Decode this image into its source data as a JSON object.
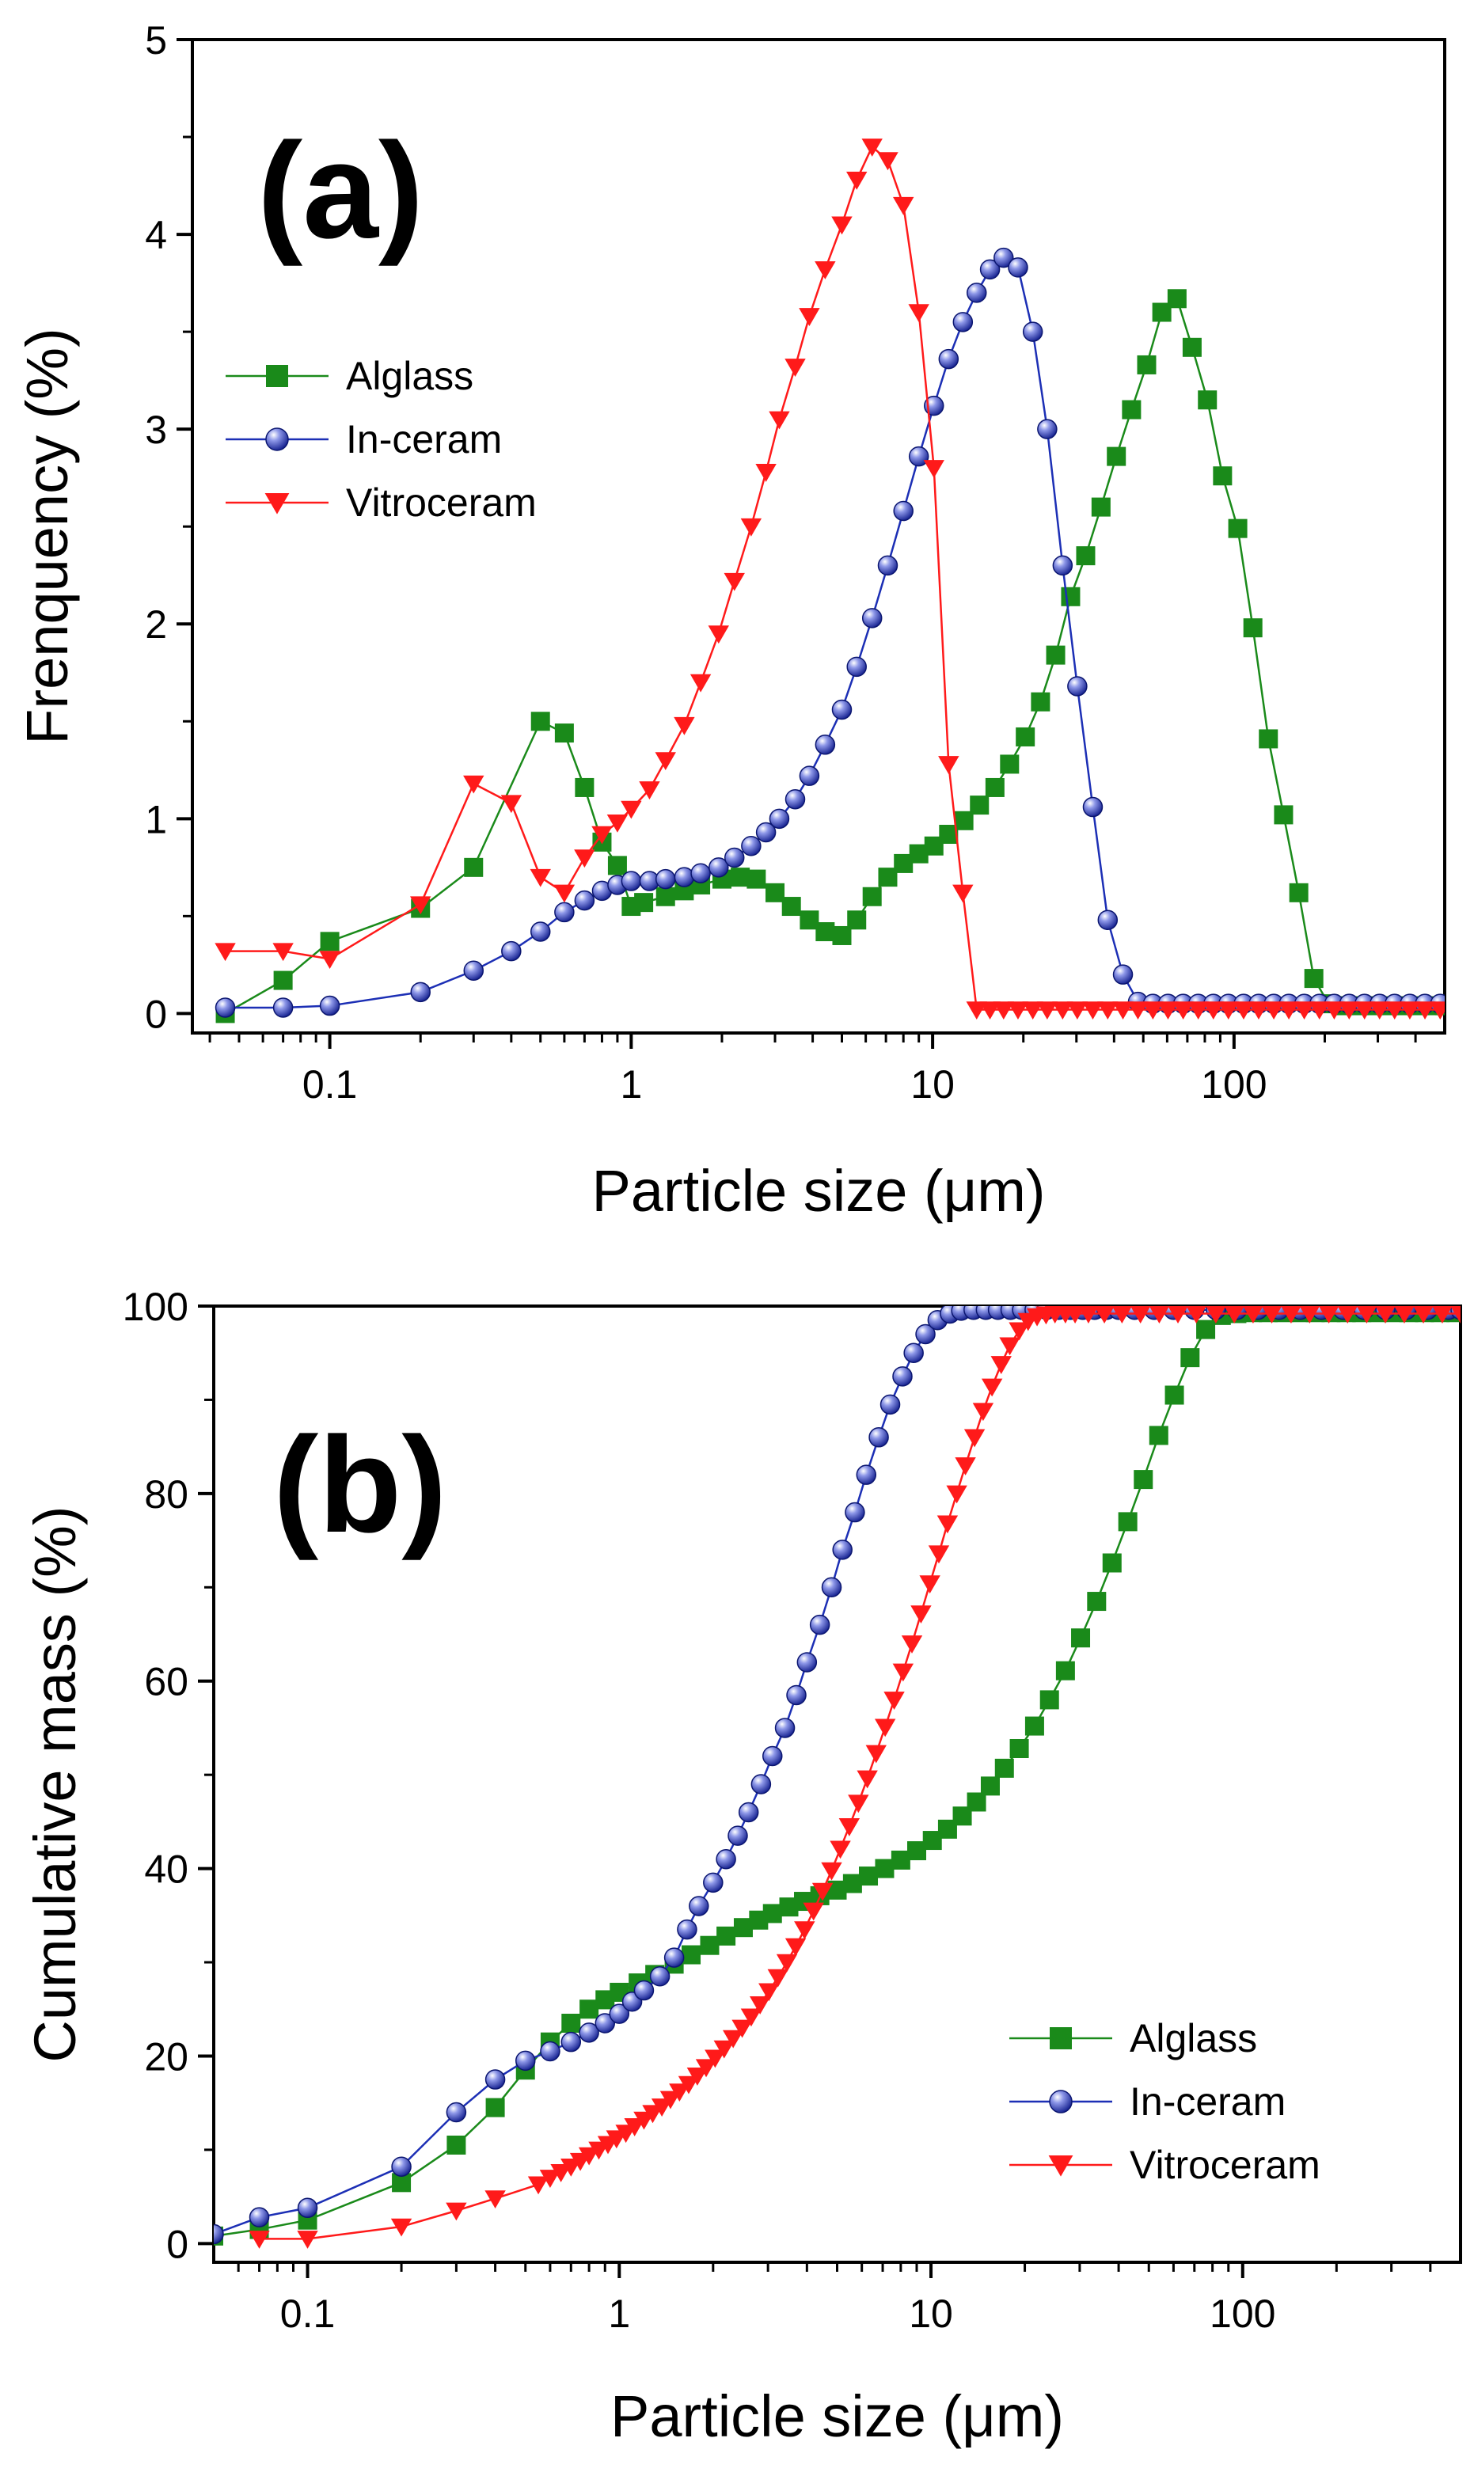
{
  "figure": {
    "panels": [
      "(a)",
      "(b)"
    ]
  },
  "colors": {
    "Alglass": "#1a8a1a",
    "In-ceram": "#1c2fb5",
    "Vitroceram": "#ff1a1a"
  },
  "chart_data": [
    {
      "type": "scatter",
      "panel_label": "(a)",
      "xlabel": "Particle size (μm)",
      "ylabel": "Frenquency (%)",
      "xscale": "log",
      "xlim": [
        0.035,
        500
      ],
      "ylim": [
        -0.1,
        5
      ],
      "xticks": [
        0.1,
        1,
        10,
        100
      ],
      "xtick_labels": [
        "0.1",
        "1",
        "10",
        "100"
      ],
      "yticks": [
        0,
        1,
        2,
        3,
        4,
        5
      ],
      "ytick_labels": [
        "0",
        "1",
        "2",
        "3",
        "4",
        "5"
      ],
      "legend_position": "middle-left",
      "series": [
        {
          "name": "Alglass",
          "marker": "square",
          "x": [
            0.045,
            0.07,
            0.1,
            0.2,
            0.3,
            0.5,
            0.6,
            0.7,
            0.8,
            0.9,
            1.0,
            1.1,
            1.3,
            1.5,
            1.7,
            2.0,
            2.3,
            2.6,
            3.0,
            3.4,
            3.9,
            4.4,
            5.0,
            5.6,
            6.3,
            7.1,
            8.0,
            9.0,
            10.1,
            11.3,
            12.7,
            14.3,
            16.1,
            18.0,
            20.3,
            22.8,
            25.6,
            28.7,
            32.2,
            36.2,
            40.7,
            45.7,
            51.3,
            57.6,
            64.7,
            72.6,
            81.6,
            91.6,
            102.9,
            115.5,
            130,
            146,
            164,
            184,
            206,
            232,
            260,
            292,
            328,
            368,
            414,
            465,
            500
          ],
          "y": [
            0.0,
            0.17,
            0.37,
            0.54,
            0.75,
            1.5,
            1.44,
            1.16,
            0.88,
            0.76,
            0.55,
            0.57,
            0.6,
            0.63,
            0.66,
            0.69,
            0.7,
            0.69,
            0.62,
            0.55,
            0.48,
            0.42,
            0.4,
            0.48,
            0.6,
            0.7,
            0.77,
            0.82,
            0.86,
            0.92,
            0.99,
            1.07,
            1.16,
            1.28,
            1.42,
            1.6,
            1.84,
            2.14,
            2.35,
            2.6,
            2.86,
            3.1,
            3.33,
            3.6,
            3.67,
            3.42,
            3.15,
            2.76,
            2.49,
            1.98,
            1.41,
            1.02,
            0.62,
            0.18,
            0.05,
            0.04,
            0.04,
            0.04,
            0.04,
            0.04,
            0.04,
            0.04,
            0.04
          ]
        },
        {
          "name": "In-ceram",
          "marker": "sphere",
          "x": [
            0.045,
            0.07,
            0.1,
            0.2,
            0.3,
            0.4,
            0.5,
            0.6,
            0.7,
            0.8,
            0.9,
            1.0,
            1.15,
            1.3,
            1.5,
            1.7,
            1.95,
            2.2,
            2.5,
            2.8,
            3.1,
            3.5,
            3.9,
            4.4,
            5.0,
            5.6,
            6.3,
            7.1,
            8.0,
            9.0,
            10.1,
            11.3,
            12.6,
            14.0,
            15.5,
            17.2,
            19.2,
            21.5,
            24.0,
            27.0,
            30.2,
            34.0,
            38.1,
            42.8,
            48.0,
            53.8,
            60.4,
            67.8,
            76.1,
            85.4,
            95.8,
            107.6,
            120.7,
            135.5,
            152,
            171,
            192,
            215,
            241,
            271,
            304,
            341,
            383,
            430,
            483
          ],
          "y": [
            0.03,
            0.03,
            0.04,
            0.11,
            0.22,
            0.32,
            0.42,
            0.52,
            0.58,
            0.63,
            0.66,
            0.68,
            0.68,
            0.69,
            0.7,
            0.72,
            0.75,
            0.8,
            0.86,
            0.93,
            1.0,
            1.1,
            1.22,
            1.38,
            1.56,
            1.78,
            2.03,
            2.3,
            2.58,
            2.86,
            3.12,
            3.36,
            3.55,
            3.7,
            3.82,
            3.88,
            3.83,
            3.5,
            3.0,
            2.3,
            1.68,
            1.06,
            0.48,
            0.2,
            0.06,
            0.05,
            0.05,
            0.05,
            0.05,
            0.05,
            0.05,
            0.05,
            0.05,
            0.05,
            0.05,
            0.05,
            0.05,
            0.05,
            0.05,
            0.05,
            0.05,
            0.05,
            0.05,
            0.05,
            0.05
          ]
        },
        {
          "name": "Vitroceram",
          "marker": "down-triangle",
          "x": [
            0.045,
            0.07,
            0.1,
            0.2,
            0.3,
            0.4,
            0.5,
            0.6,
            0.7,
            0.8,
            0.9,
            1.0,
            1.15,
            1.3,
            1.5,
            1.7,
            1.95,
            2.2,
            2.5,
            2.8,
            3.1,
            3.5,
            3.9,
            4.4,
            5.0,
            5.6,
            6.3,
            7.1,
            8.0,
            9.0,
            10.1,
            11.3,
            12.6,
            14.0,
            15.5,
            17.2,
            19.2,
            21.5,
            24.0,
            27.0,
            30.2,
            34.0,
            38.1,
            42.8,
            48.0,
            53.8,
            60.4,
            67.8,
            76.1,
            85.4,
            95.8,
            107.6,
            120.7,
            135.5,
            152,
            171,
            192,
            215,
            241,
            271,
            304,
            341,
            383,
            430,
            483
          ],
          "y": [
            0.32,
            0.32,
            0.28,
            0.56,
            1.18,
            1.08,
            0.7,
            0.62,
            0.8,
            0.92,
            0.98,
            1.05,
            1.15,
            1.3,
            1.48,
            1.7,
            1.95,
            2.22,
            2.5,
            2.78,
            3.05,
            3.32,
            3.58,
            3.82,
            4.05,
            4.28,
            4.45,
            4.38,
            4.15,
            3.6,
            2.8,
            1.28,
            0.62,
            0.02,
            0.02,
            0.02,
            0.02,
            0.02,
            0.02,
            0.02,
            0.02,
            0.02,
            0.02,
            0.02,
            0.02,
            0.02,
            0.02,
            0.02,
            0.02,
            0.02,
            0.02,
            0.02,
            0.02,
            0.02,
            0.02,
            0.02,
            0.02,
            0.02,
            0.02,
            0.02,
            0.02,
            0.02,
            0.02,
            0.02,
            0.02
          ]
        }
      ]
    },
    {
      "type": "scatter",
      "panel_label": "(b)",
      "xlabel": "Particle size (μm)",
      "ylabel": "Cumulative mass (%)",
      "xscale": "log",
      "xlim": [
        0.05,
        500
      ],
      "ylim": [
        -2,
        100
      ],
      "xticks": [
        0.1,
        1,
        10,
        100
      ],
      "xtick_labels": [
        "0.1",
        "1",
        "10",
        "100"
      ],
      "yticks": [
        0,
        20,
        40,
        60,
        80,
        100
      ],
      "ytick_labels": [
        "0",
        "20",
        "40",
        "60",
        "80",
        "100"
      ],
      "legend_position": "bottom-right",
      "series": [
        {
          "name": "Alglass",
          "marker": "square",
          "x": [
            0.05,
            0.07,
            0.1,
            0.2,
            0.3,
            0.4,
            0.5,
            0.6,
            0.7,
            0.8,
            0.9,
            1.0,
            1.15,
            1.3,
            1.5,
            1.7,
            1.95,
            2.2,
            2.5,
            2.8,
            3.1,
            3.5,
            3.9,
            4.4,
            5.0,
            5.6,
            6.3,
            7.1,
            8.0,
            9.0,
            10.1,
            11.3,
            12.6,
            14.0,
            15.5,
            17.2,
            19.2,
            21.5,
            24.0,
            27.0,
            30.2,
            34.0,
            38.1,
            42.8,
            48.0,
            53.8,
            60.4,
            67.8,
            76.1,
            85.4,
            95.8,
            107.6,
            120.7,
            135.5,
            152,
            171,
            192,
            215,
            241,
            271,
            304,
            341,
            383,
            430,
            483
          ],
          "y": [
            0.8,
            1.5,
            2.5,
            6.5,
            10.5,
            14.5,
            18.5,
            21.5,
            23.5,
            25,
            26,
            26.8,
            27.8,
            28.7,
            29.8,
            30.8,
            31.8,
            32.8,
            33.7,
            34.5,
            35.2,
            35.9,
            36.5,
            37.1,
            37.7,
            38.4,
            39.2,
            40.0,
            40.9,
            41.9,
            43.0,
            44.2,
            45.6,
            47.1,
            48.8,
            50.7,
            52.8,
            55.2,
            58.0,
            61.1,
            64.6,
            68.5,
            72.6,
            77.0,
            81.5,
            86.2,
            90.5,
            94.5,
            97.5,
            99.0,
            99.2,
            99.3,
            99.3,
            99.3,
            99.3,
            99.3,
            99.3,
            99.3,
            99.3,
            99.3,
            99.3,
            99.3,
            99.3,
            99.3,
            99.3
          ]
        },
        {
          "name": "In-ceram",
          "marker": "sphere",
          "x": [
            0.05,
            0.07,
            0.1,
            0.2,
            0.3,
            0.4,
            0.5,
            0.6,
            0.7,
            0.8,
            0.9,
            1.0,
            1.1,
            1.2,
            1.35,
            1.5,
            1.65,
            1.8,
            2.0,
            2.2,
            2.4,
            2.6,
            2.85,
            3.1,
            3.4,
            3.7,
            4.0,
            4.4,
            4.8,
            5.2,
            5.7,
            6.2,
            6.8,
            7.4,
            8.1,
            8.8,
            9.6,
            10.5,
            11.5,
            12.5,
            13.7,
            15,
            16.4,
            18,
            19.6,
            21.5,
            23.5,
            25.7,
            28,
            30.7,
            33.5,
            36.6,
            40,
            45,
            52,
            60,
            70,
            82,
            96,
            112,
            131,
            153,
            179,
            210,
            245,
            287,
            335,
            392,
            458,
            500
          ],
          "y": [
            1.0,
            2.8,
            3.8,
            8.2,
            14.0,
            17.5,
            19.5,
            20.5,
            21.5,
            22.5,
            23.5,
            24.5,
            25.8,
            27.0,
            28.5,
            30.5,
            33.5,
            36.0,
            38.5,
            41.0,
            43.5,
            46.0,
            49.0,
            52.0,
            55.0,
            58.5,
            62.0,
            66.0,
            70.0,
            74.0,
            78.0,
            82.0,
            86.0,
            89.5,
            92.5,
            95.0,
            97.0,
            98.5,
            99.2,
            99.5,
            99.6,
            99.6,
            99.6,
            99.6,
            99.6,
            99.6,
            99.6,
            99.6,
            99.6,
            99.6,
            99.6,
            99.6,
            99.6,
            99.6,
            99.6,
            99.6,
            99.6,
            99.6,
            99.6,
            99.6,
            99.6,
            99.6,
            99.6,
            99.6,
            99.6,
            99.6,
            99.6,
            99.6,
            99.6,
            99.6
          ]
        },
        {
          "name": "Vitroceram",
          "marker": "down-triangle",
          "x": [
            0.07,
            0.1,
            0.2,
            0.3,
            0.4,
            0.55,
            0.6,
            0.65,
            0.7,
            0.75,
            0.8,
            0.86,
            0.92,
            0.98,
            1.05,
            1.12,
            1.2,
            1.28,
            1.37,
            1.46,
            1.56,
            1.67,
            1.78,
            1.9,
            2.03,
            2.17,
            2.32,
            2.48,
            2.65,
            2.83,
            3.02,
            3.23,
            3.45,
            3.68,
            3.93,
            4.2,
            4.49,
            4.8,
            5.12,
            5.47,
            5.85,
            6.25,
            6.67,
            7.13,
            7.62,
            8.14,
            8.69,
            9.29,
            9.92,
            10.6,
            11.3,
            12.1,
            12.9,
            13.8,
            14.7,
            15.7,
            16.8,
            17.9,
            19.2,
            20.5,
            21.9,
            23.4,
            25,
            27,
            29,
            32,
            36,
            41,
            47,
            54,
            62,
            71,
            82,
            94,
            108,
            124,
            143,
            164,
            189,
            217,
            250,
            287,
            330,
            380,
            437,
            500
          ],
          "y": [
            0.5,
            0.5,
            1.8,
            3.5,
            4.8,
            6.3,
            7.0,
            7.6,
            8.2,
            8.8,
            9.4,
            10.0,
            10.6,
            11.2,
            11.8,
            12.5,
            13.2,
            13.9,
            14.6,
            15.4,
            16.2,
            17.0,
            17.9,
            18.8,
            19.8,
            20.8,
            21.9,
            23.0,
            24.2,
            25.5,
            26.9,
            28.4,
            30.0,
            31.7,
            33.5,
            35.5,
            37.6,
            39.8,
            42.1,
            44.5,
            47.0,
            49.6,
            52.3,
            55.1,
            58.0,
            61.0,
            64.0,
            67.2,
            70.4,
            73.6,
            76.8,
            80.0,
            83.0,
            86.0,
            88.8,
            91.4,
            93.8,
            95.8,
            97.4,
            98.4,
            98.9,
            99.1,
            99.2,
            99.2,
            99.2,
            99.2,
            99.2,
            99.2,
            99.2,
            99.2,
            99.2,
            99.2,
            99.2,
            99.2,
            99.2,
            99.2,
            99.2,
            99.2,
            99.2,
            99.2,
            99.2,
            99.2,
            99.2,
            99.2,
            99.2,
            99.2
          ]
        }
      ]
    }
  ]
}
